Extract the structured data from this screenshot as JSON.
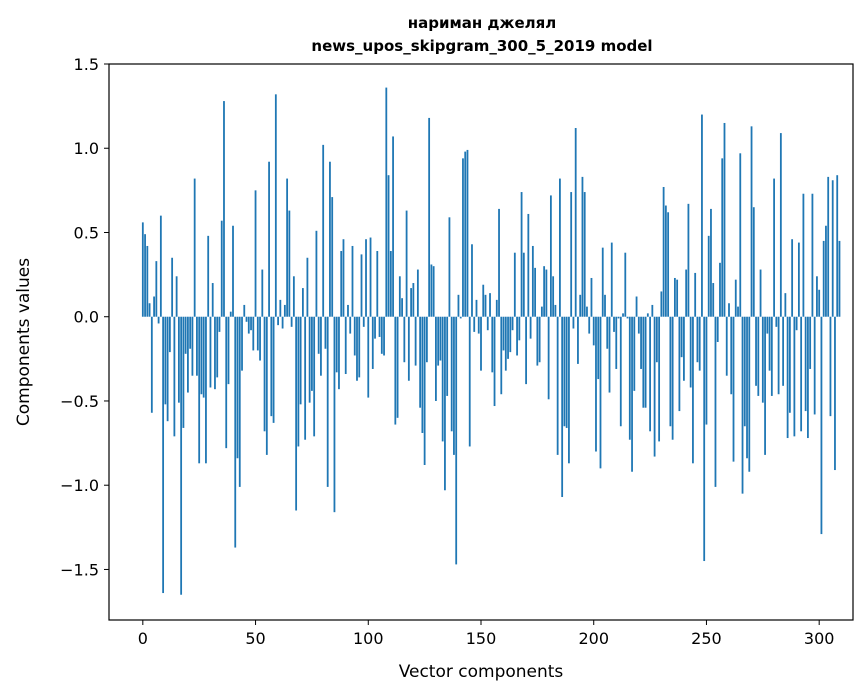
{
  "chart_data": {
    "type": "bar",
    "title_line1": "нариман джелял",
    "title_line2": "news_upos_skipgram_300_5_2019 model",
    "xlabel": "Vector components",
    "ylabel": "Components values",
    "xlim": [
      -15,
      315
    ],
    "ylim": [
      -1.8,
      1.5
    ],
    "x_ticks": [
      0,
      50,
      100,
      150,
      200,
      250,
      300
    ],
    "x_tick_labels": [
      "0",
      "50",
      "100",
      "150",
      "200",
      "250",
      "300"
    ],
    "y_ticks": [
      1.5,
      1.0,
      0.5,
      0.0,
      -0.5,
      -1.0,
      -1.5
    ],
    "y_tick_labels": [
      "1.5",
      "1.0",
      "0.5",
      "0.0",
      "−0.5",
      "−1.0",
      "−1.5"
    ],
    "bar_color": "#1f77b4",
    "series": [
      {
        "name": "components",
        "values": [
          0.56,
          0.49,
          0.42,
          0.08,
          -0.57,
          0.12,
          0.33,
          -0.04,
          0.6,
          -1.64,
          -0.52,
          -0.62,
          -0.21,
          0.35,
          -0.71,
          0.24,
          -0.51,
          -1.65,
          -0.66,
          -0.22,
          -0.45,
          -0.19,
          -0.35,
          0.82,
          -0.35,
          -0.87,
          -0.46,
          -0.48,
          -0.87,
          0.48,
          -0.42,
          0.2,
          -0.43,
          -0.36,
          -0.09,
          0.57,
          1.28,
          -0.78,
          -0.4,
          0.03,
          0.54,
          -1.37,
          -0.84,
          -1.01,
          -0.32,
          0.07,
          -0.03,
          -0.1,
          -0.08,
          -0.2,
          0.75,
          -0.2,
          -0.26,
          0.28,
          -0.68,
          -0.82,
          0.92,
          -0.59,
          -0.63,
          1.32,
          -0.05,
          0.1,
          -0.07,
          0.07,
          0.82,
          0.63,
          -0.06,
          0.24,
          -1.15,
          -0.77,
          -0.52,
          0.17,
          -0.73,
          0.35,
          -0.51,
          -0.44,
          -0.71,
          0.51,
          -0.22,
          -0.35,
          1.02,
          -0.19,
          -1.01,
          0.92,
          0.71,
          -1.16,
          -0.33,
          -0.43,
          0.39,
          0.46,
          -0.34,
          0.07,
          -0.1,
          0.42,
          -0.23,
          -0.38,
          -0.36,
          0.37,
          -0.06,
          0.46,
          -0.48,
          0.47,
          -0.31,
          -0.13,
          0.39,
          -0.12,
          -0.22,
          -0.23,
          1.36,
          0.84,
          0.39,
          1.07,
          -0.64,
          -0.6,
          0.24,
          0.11,
          -0.27,
          0.63,
          -0.38,
          0.17,
          0.2,
          -0.29,
          0.28,
          -0.54,
          -0.69,
          -0.88,
          -0.27,
          1.18,
          0.31,
          0.3,
          -0.5,
          -0.29,
          -0.26,
          -0.74,
          -1.03,
          -0.47,
          0.59,
          -0.68,
          -0.82,
          -1.47,
          0.13,
          -0.01,
          0.94,
          0.98,
          0.99,
          -0.77,
          0.43,
          -0.09,
          0.1,
          -0.1,
          -0.32,
          0.19,
          0.13,
          -0.08,
          0.14,
          -0.33,
          -0.53,
          0.1,
          0.64,
          -0.46,
          -0.2,
          -0.32,
          -0.25,
          -0.21,
          -0.08,
          0.38,
          -0.23,
          -0.14,
          0.74,
          0.38,
          -0.4,
          0.61,
          -0.13,
          0.42,
          0.29,
          -0.29,
          -0.27,
          0.06,
          0.3,
          0.28,
          -0.49,
          0.72,
          0.24,
          0.07,
          -0.82,
          0.82,
          -1.07,
          -0.65,
          -0.66,
          -0.87,
          0.74,
          -0.07,
          1.12,
          -0.28,
          0.13,
          0.83,
          0.74,
          0.06,
          -0.1,
          0.23,
          -0.17,
          -0.8,
          -0.37,
          -0.9,
          0.41,
          0.13,
          -0.19,
          -0.45,
          0.44,
          -0.09,
          -0.31,
          -0.01,
          -0.65,
          0.02,
          0.38,
          -0.01,
          -0.73,
          -0.92,
          -0.44,
          0.12,
          -0.1,
          -0.31,
          -0.54,
          -0.54,
          0.02,
          -0.68,
          0.07,
          -0.83,
          -0.27,
          -0.74,
          0.15,
          0.77,
          0.66,
          0.62,
          -0.65,
          -0.73,
          0.23,
          0.22,
          -0.56,
          -0.24,
          -0.38,
          0.28,
          0.67,
          -0.42,
          -0.87,
          0.26,
          -0.27,
          -0.32,
          1.2,
          -1.45,
          -0.64,
          0.48,
          0.64,
          0.2,
          -1.01,
          -0.15,
          0.32,
          0.94,
          1.15,
          -0.35,
          0.08,
          -0.46,
          -0.86,
          0.22,
          0.06,
          0.97,
          -1.05,
          -0.65,
          -0.84,
          -0.92,
          1.13,
          0.65,
          -0.41,
          -0.47,
          0.28,
          -0.51,
          -0.82,
          -0.1,
          -0.32,
          -0.47,
          0.82,
          -0.06,
          -0.46,
          1.09,
          -0.41,
          0.14,
          -0.72,
          -0.57,
          0.46,
          -0.71,
          -0.08,
          0.44,
          -0.68,
          0.73,
          -0.56,
          -0.72,
          -0.31,
          0.73,
          -0.58,
          0.24,
          0.16,
          -1.29,
          0.45,
          0.54,
          0.83,
          -0.59,
          0.81,
          -0.91,
          0.84,
          0.45
        ]
      }
    ]
  }
}
